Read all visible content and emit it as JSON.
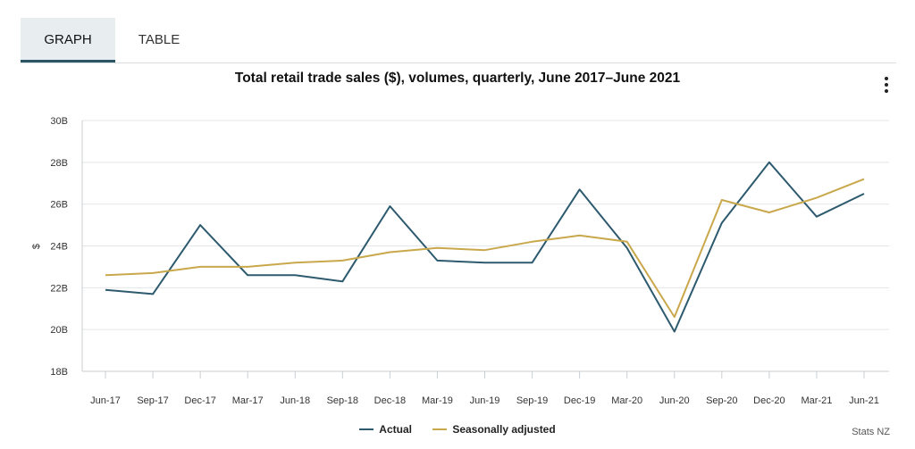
{
  "tabs": [
    {
      "label": "GRAPH",
      "active": true
    },
    {
      "label": "TABLE",
      "active": false
    }
  ],
  "menu_icon": "kebab-menu-icon",
  "credit": "Stats NZ",
  "colors": {
    "actual": "#2d5a6e",
    "seasonal": "#c9a84c",
    "grid": "#e3e6e8",
    "active_tab_bg": "#e8edf0",
    "active_tab_border": "#2c5566"
  },
  "chart_data": {
    "type": "line",
    "title": "Total retail trade sales ($), volumes, quarterly, June 2017–June 2021",
    "xlabel": "",
    "ylabel": "$",
    "categories": [
      "Jun-17",
      "Sep-17",
      "Dec-17",
      "Mar-17",
      "Jun-18",
      "Sep-18",
      "Dec-18",
      "Mar-19",
      "Jun-19",
      "Sep-19",
      "Dec-19",
      "Mar-20",
      "Jun-20",
      "Sep-20",
      "Dec-20",
      "Mar-21",
      "Jun-21"
    ],
    "y_ticks": [
      "18B",
      "20B",
      "22B",
      "24B",
      "26B",
      "28B",
      "30B"
    ],
    "ylim": [
      18,
      30
    ],
    "y_unit": "billions",
    "grid": true,
    "legend_position": "bottom",
    "series": [
      {
        "name": "Actual",
        "values": [
          21.9,
          21.7,
          25.0,
          22.6,
          22.6,
          22.3,
          25.9,
          23.3,
          23.2,
          23.2,
          26.7,
          23.9,
          19.9,
          25.1,
          28.0,
          25.4,
          26.5
        ]
      },
      {
        "name": "Seasonally adjusted",
        "values": [
          22.6,
          22.7,
          23.0,
          23.0,
          23.2,
          23.3,
          23.7,
          23.9,
          23.8,
          24.2,
          24.5,
          24.2,
          20.6,
          26.2,
          25.6,
          26.3,
          27.2
        ]
      }
    ]
  }
}
